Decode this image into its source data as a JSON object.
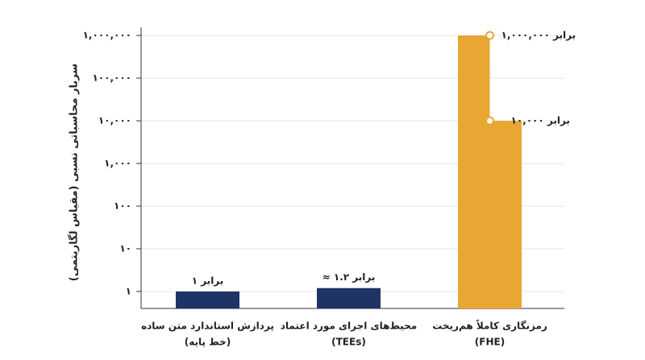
{
  "chart_data": {
    "type": "bar",
    "y_label": "سربار محاسباتی نسبی (مقیاس لگاریتمی)",
    "log_scale": true,
    "grid": true,
    "ylim": [
      0.4,
      1300000
    ],
    "yticks": [
      {
        "value": 1,
        "label": "۱"
      },
      {
        "value": 10,
        "label": "۱۰"
      },
      {
        "value": 100,
        "label": "۱۰۰"
      },
      {
        "value": 1000,
        "label": "۱,۰۰۰"
      },
      {
        "value": 10000,
        "label": "۱۰,۰۰۰"
      },
      {
        "value": 100000,
        "label": "۱۰۰,۰۰۰"
      },
      {
        "value": 1000000,
        "label": "۱,۰۰۰,۰۰۰"
      }
    ],
    "bars": [
      {
        "category": [
          "پردازش استاندارد متن ساده",
          "(خط پایه)"
        ],
        "color": "#1e3366",
        "values": [
          1
        ],
        "value_labels": [
          "۱ برابر"
        ]
      },
      {
        "category": [
          "محیط‌های اجرای مورد اعتماد",
          "(TEEs)"
        ],
        "color": "#1e3366",
        "values": [
          1.2
        ],
        "value_labels": [
          "≈ ۱.۲ برابر"
        ]
      },
      {
        "category": [
          "رمزنگاری کاملاً هم‌ریخت",
          "(FHE)"
        ],
        "color": "#e8a733",
        "values": [
          1000000,
          10000
        ],
        "value_labels": [
          "۱,۰۰۰,۰۰۰ برابر",
          "۱۰,۰۰۰ برابر"
        ]
      }
    ]
  }
}
